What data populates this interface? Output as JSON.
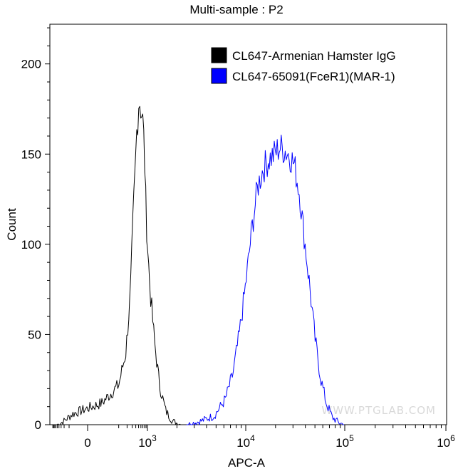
{
  "chart_data": {
    "type": "line",
    "title": "Multi-sample : P2",
    "xlabel": "APC-A",
    "ylabel": "Count",
    "x_scale": "biexponential",
    "y_ticks": [
      0,
      50,
      100,
      150,
      200
    ],
    "ylim": [
      0,
      222
    ],
    "x_major_ticks": [
      {
        "value": 0,
        "base": "0",
        "exp": ""
      },
      {
        "value": 1000,
        "base": "10",
        "exp": "3"
      },
      {
        "value": 10000,
        "base": "10",
        "exp": "4"
      },
      {
        "value": 100000,
        "base": "10",
        "exp": "5"
      },
      {
        "value": 1000000,
        "base": "10",
        "exp": "6"
      }
    ],
    "legend_position": "top-right",
    "watermark": "WWW.PTGLAB.COM",
    "series": [
      {
        "name": "CL647-Armenian Hamster IgG",
        "color": "#000000",
        "points": [
          [
            -520,
            0
          ],
          [
            -300,
            1
          ],
          [
            -150,
            3
          ],
          [
            -60,
            6
          ],
          [
            20,
            12
          ],
          [
            100,
            22
          ],
          [
            180,
            40
          ],
          [
            260,
            72
          ],
          [
            330,
            118
          ],
          [
            380,
            140
          ],
          [
            430,
            162
          ],
          [
            470,
            170
          ],
          [
            520,
            182
          ],
          [
            560,
            178
          ],
          [
            610,
            174
          ],
          [
            660,
            172
          ],
          [
            720,
            166
          ],
          [
            790,
            150
          ],
          [
            870,
            126
          ],
          [
            960,
            106
          ],
          [
            1060,
            76
          ],
          [
            1180,
            46
          ],
          [
            1330,
            22
          ],
          [
            1530,
            8
          ],
          [
            1800,
            2
          ],
          [
            2200,
            0
          ]
        ]
      },
      {
        "name": "CL647-65091(FceR1)(MAR-1)",
        "color": "#0000ff",
        "points": [
          [
            2500,
            0
          ],
          [
            3500,
            2
          ],
          [
            4800,
            5
          ],
          [
            6200,
            14
          ],
          [
            7400,
            28
          ],
          [
            8600,
            50
          ],
          [
            10000,
            78
          ],
          [
            11500,
            108
          ],
          [
            13200,
            132
          ],
          [
            15000,
            142
          ],
          [
            17000,
            147
          ],
          [
            19500,
            150
          ],
          [
            22000,
            154
          ],
          [
            25000,
            152
          ],
          [
            28000,
            149
          ],
          [
            31000,
            144
          ],
          [
            35000,
            128
          ],
          [
            39000,
            104
          ],
          [
            44000,
            78
          ],
          [
            50000,
            48
          ],
          [
            57000,
            26
          ],
          [
            65000,
            12
          ],
          [
            75000,
            4
          ],
          [
            88000,
            1
          ],
          [
            100000,
            0
          ]
        ]
      }
    ]
  }
}
